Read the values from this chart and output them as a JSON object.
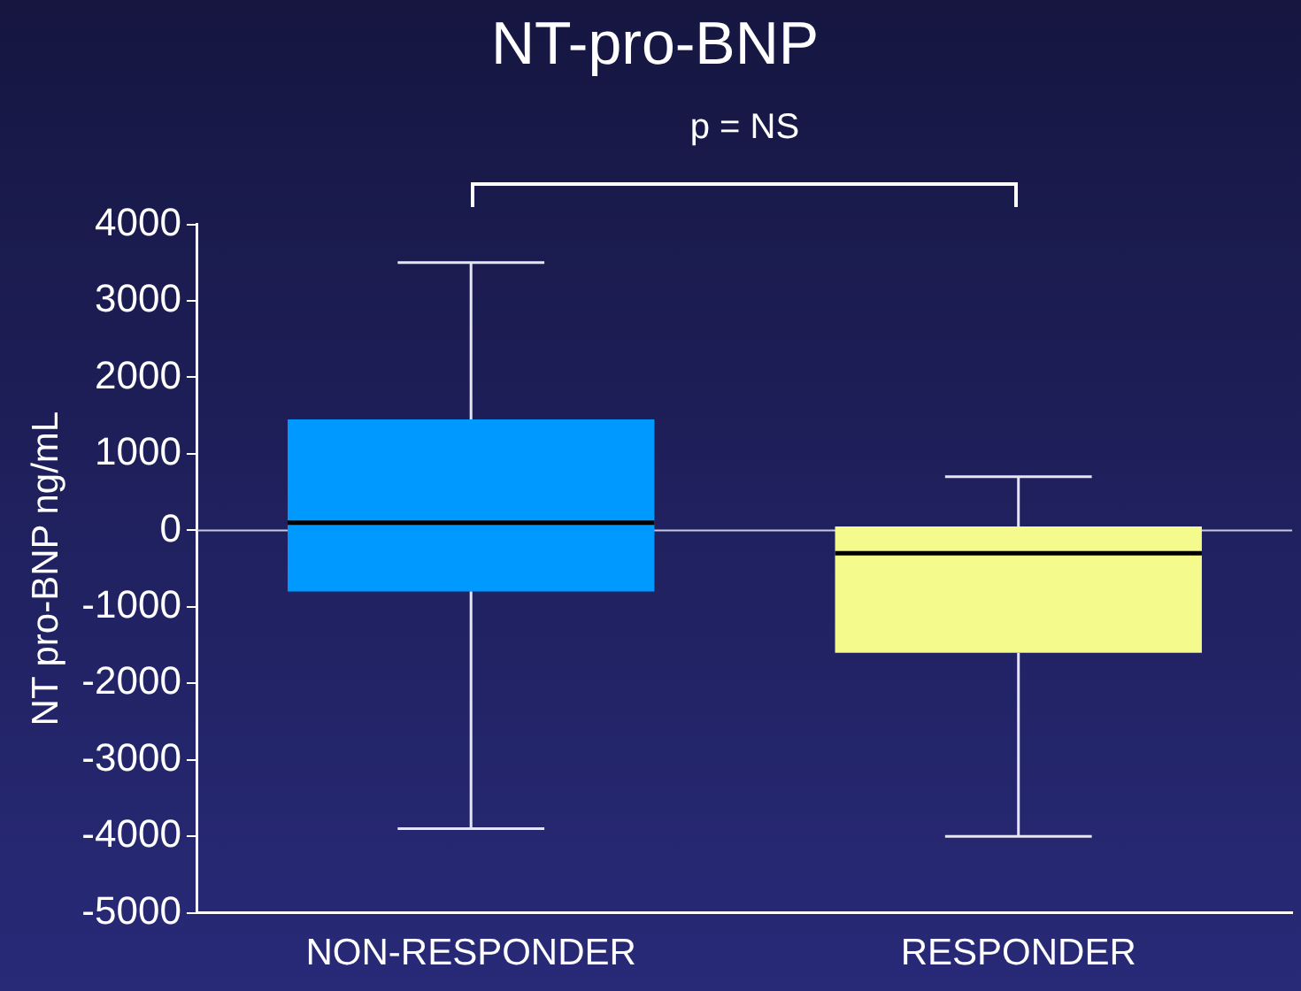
{
  "chart_data": {
    "type": "box",
    "title": "NT-pro-BNP",
    "ylabel": "NT pro-BNP ng/mL",
    "categories": [
      "NON-RESPONDER",
      "RESPONDER"
    ],
    "colors": [
      "#0099ff",
      "#f5fa8c"
    ],
    "boxes": [
      {
        "low": -3900,
        "q1": -800,
        "median": 100,
        "q3": 1450,
        "high": 3500
      },
      {
        "low": -4000,
        "q1": -1600,
        "median": -300,
        "q3": 50,
        "high": 700
      }
    ],
    "ylim": [
      -5000,
      4000
    ],
    "yticks": [
      -5000,
      -4000,
      -3000,
      -2000,
      -1000,
      0,
      1000,
      2000,
      3000,
      4000
    ],
    "grid": false,
    "legend": false,
    "ref_lines": [
      {
        "axis": "y",
        "value": 0,
        "color": "#c8c8dc"
      }
    ],
    "annotations": [
      "p = NS"
    ]
  }
}
